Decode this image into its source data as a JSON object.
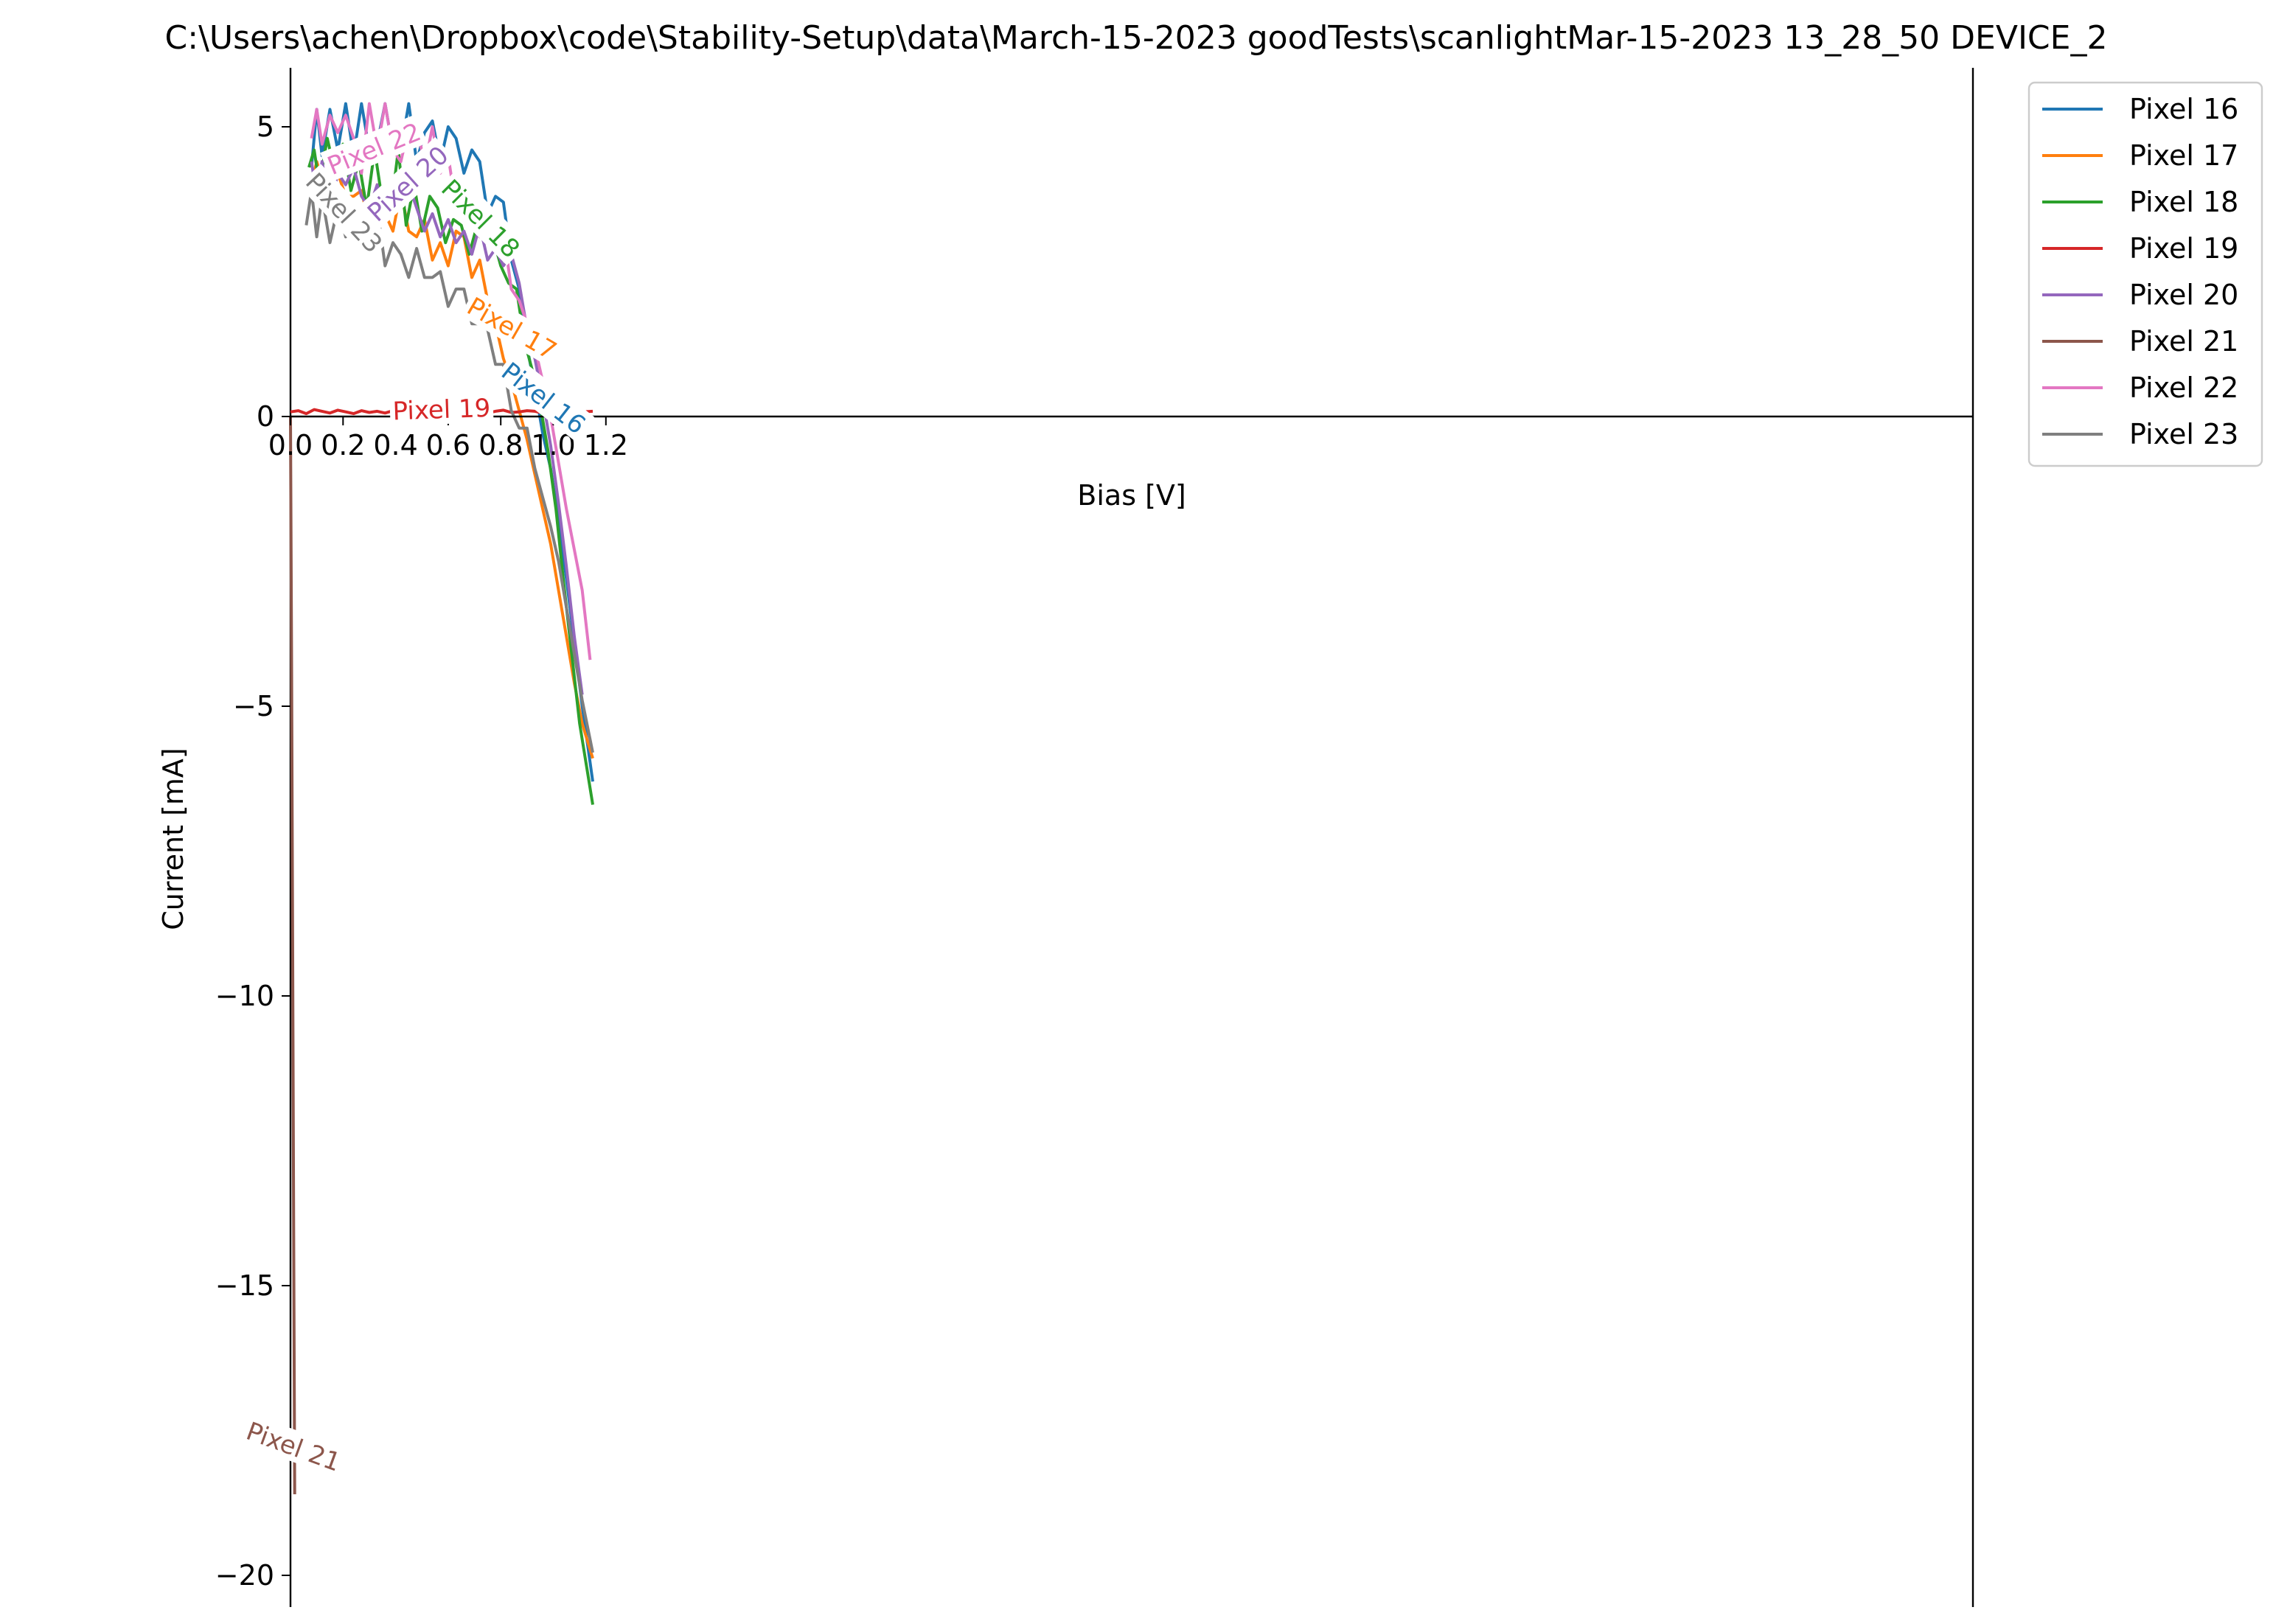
{
  "chart_data": {
    "type": "line",
    "title": "C:\\Users\\achen\\Dropbox\\code\\Stability-Setup\\data\\March-15-2023 goodTests\\scanlightMar-15-2023 13_28_50 DEVICE_2",
    "xlabel": "Bias [V]",
    "ylabel": "Current [mA]",
    "xlim": [
      0.0,
      1.28
    ],
    "ylim": [
      -20.55,
      6.0
    ],
    "xticks": [
      0.0,
      0.2,
      0.4,
      0.6,
      0.8,
      1.0,
      1.2
    ],
    "xtick_labels": [
      "0.0",
      "0.2",
      "0.4",
      "0.6",
      "0.8",
      "1.0",
      "1.2"
    ],
    "yticks": [
      5,
      0,
      -5,
      -10,
      -15,
      -20
    ],
    "ytick_labels": [
      "5",
      "0",
      "−5",
      "−10",
      "−15",
      "−20"
    ],
    "grid": false,
    "legend_position": "outside-top-right",
    "series": [
      {
        "name": "Pixel 16",
        "color": "#1f77b4",
        "x": [
          0.08,
          0.1,
          0.12,
          0.15,
          0.18,
          0.21,
          0.24,
          0.27,
          0.3,
          0.33,
          0.36,
          0.39,
          0.42,
          0.45,
          0.48,
          0.51,
          0.54,
          0.57,
          0.6,
          0.63,
          0.66,
          0.69,
          0.72,
          0.75,
          0.78,
          0.81,
          0.84,
          0.87,
          0.9,
          0.93,
          0.96,
          0.99,
          1.02,
          1.05,
          1.08,
          1.11,
          1.15
        ],
        "y": [
          4.3,
          5.3,
          4.5,
          5.3,
          4.6,
          5.4,
          4.5,
          5.4,
          4.6,
          4.7,
          5.4,
          4.6,
          4.6,
          5.4,
          4.4,
          4.9,
          5.1,
          4.4,
          5.0,
          4.8,
          4.2,
          4.6,
          4.4,
          3.5,
          3.8,
          3.7,
          2.7,
          2.2,
          1.2,
          0.5,
          -0.3,
          -0.9,
          -1.8,
          -2.8,
          -3.9,
          -5.0,
          -6.3
        ]
      },
      {
        "name": "Pixel 17",
        "color": "#ff7f0e",
        "x": [
          0.08,
          0.1,
          0.12,
          0.15,
          0.18,
          0.21,
          0.24,
          0.27,
          0.3,
          0.33,
          0.36,
          0.39,
          0.42,
          0.45,
          0.48,
          0.51,
          0.54,
          0.57,
          0.6,
          0.63,
          0.66,
          0.69,
          0.72,
          0.75,
          0.78,
          0.81,
          0.84,
          0.87,
          0.9,
          0.93,
          0.96,
          0.99,
          1.02,
          1.05,
          1.08,
          1.11,
          1.15
        ],
        "y": [
          4.0,
          4.4,
          4.1,
          3.8,
          4.2,
          3.8,
          3.8,
          3.9,
          3.3,
          4.0,
          3.5,
          3.2,
          3.9,
          3.2,
          3.1,
          3.4,
          2.7,
          3.0,
          2.6,
          3.2,
          3.1,
          2.4,
          2.7,
          2.0,
          1.6,
          1.0,
          0.6,
          0.1,
          -0.4,
          -1.0,
          -1.6,
          -2.2,
          -3.0,
          -3.8,
          -4.6,
          -5.3,
          -5.9
        ]
      },
      {
        "name": "Pixel 18",
        "color": "#2ca02c",
        "x": [
          0.07,
          0.09,
          0.11,
          0.14,
          0.17,
          0.2,
          0.23,
          0.26,
          0.29,
          0.32,
          0.35,
          0.38,
          0.41,
          0.44,
          0.47,
          0.5,
          0.53,
          0.56,
          0.59,
          0.62,
          0.65,
          0.68,
          0.71,
          0.74,
          0.77,
          0.8,
          0.83,
          0.86,
          0.89,
          0.92,
          0.95,
          0.98,
          1.01,
          1.04,
          1.07,
          1.1,
          1.15
        ],
        "y": [
          4.3,
          4.6,
          4.0,
          4.8,
          4.2,
          4.7,
          3.9,
          4.4,
          3.6,
          4.6,
          3.7,
          3.5,
          4.6,
          3.3,
          4.0,
          3.2,
          3.8,
          3.6,
          3.0,
          3.4,
          3.3,
          2.8,
          3.3,
          3.5,
          3.1,
          2.6,
          2.3,
          2.2,
          1.3,
          0.8,
          0.2,
          -0.6,
          -1.6,
          -2.9,
          -4.1,
          -5.3,
          -6.7
        ]
      },
      {
        "name": "Pixel 19",
        "color": "#d62728",
        "x": [
          0.0,
          0.03,
          0.06,
          0.09,
          0.12,
          0.15,
          0.18,
          0.21,
          0.24,
          0.27,
          0.3,
          0.33,
          0.36,
          0.39,
          0.42,
          0.45,
          0.48,
          0.51,
          0.54,
          0.57,
          0.6,
          0.63,
          0.66,
          0.69,
          0.72,
          0.75,
          0.78,
          0.81,
          0.84,
          0.87,
          0.9,
          0.93,
          0.96,
          0.99,
          1.02,
          1.05,
          1.08,
          1.11,
          1.15
        ],
        "y": [
          0.08,
          0.1,
          0.05,
          0.12,
          0.09,
          0.06,
          0.11,
          0.08,
          0.05,
          0.1,
          0.07,
          0.09,
          0.06,
          0.1,
          0.08,
          0.05,
          0.09,
          0.07,
          0.1,
          0.06,
          0.08,
          0.09,
          0.07,
          0.1,
          0.08,
          0.06,
          0.09,
          0.11,
          0.07,
          0.08,
          0.1,
          0.09,
          0.06,
          0.08,
          0.1,
          0.07,
          0.09,
          0.08,
          0.09
        ]
      },
      {
        "name": "Pixel 20",
        "color": "#9467bd",
        "x": [
          0.08,
          0.1,
          0.12,
          0.15,
          0.18,
          0.21,
          0.24,
          0.27,
          0.3,
          0.33,
          0.36,
          0.39,
          0.42,
          0.45,
          0.48,
          0.51,
          0.54,
          0.57,
          0.6,
          0.63,
          0.66,
          0.69,
          0.72,
          0.75,
          0.78,
          0.81,
          0.84,
          0.87,
          0.9,
          0.93,
          0.96,
          0.99,
          1.02,
          1.05,
          1.08,
          1.11
        ],
        "y": [
          4.4,
          3.8,
          4.4,
          3.6,
          4.2,
          4.0,
          4.3,
          3.8,
          3.6,
          4.0,
          3.5,
          3.8,
          3.7,
          4.0,
          3.6,
          3.2,
          3.5,
          3.1,
          3.4,
          3.0,
          3.2,
          2.8,
          3.3,
          2.7,
          2.9,
          2.6,
          2.8,
          2.3,
          1.5,
          1.0,
          0.3,
          -0.5,
          -1.5,
          -2.6,
          -3.8,
          -4.8
        ]
      },
      {
        "name": "Pixel 21",
        "color": "#8c564b",
        "x": [
          0.0,
          0.004,
          0.008,
          0.012,
          0.016
        ],
        "y": [
          0.0,
          -4.0,
          -9.0,
          -14.0,
          -18.6
        ]
      },
      {
        "name": "Pixel 22",
        "color": "#e377c2",
        "x": [
          0.08,
          0.1,
          0.12,
          0.15,
          0.18,
          0.21,
          0.24,
          0.27,
          0.3,
          0.33,
          0.36,
          0.39,
          0.42,
          0.45,
          0.48,
          0.51,
          0.54,
          0.57,
          0.6,
          0.63,
          0.66,
          0.69,
          0.72,
          0.75,
          0.78,
          0.81,
          0.84,
          0.87,
          0.9,
          0.93,
          0.96,
          0.99,
          1.02,
          1.05,
          1.08,
          1.11,
          1.14
        ],
        "y": [
          4.8,
          5.3,
          4.7,
          5.2,
          4.9,
          5.2,
          4.8,
          4.2,
          5.4,
          4.6,
          5.4,
          4.6,
          4.4,
          5.0,
          5.1,
          4.3,
          5.0,
          4.2,
          4.5,
          3.6,
          3.8,
          3.4,
          3.1,
          3.3,
          3.0,
          3.2,
          2.2,
          2.0,
          1.6,
          1.2,
          0.6,
          0.0,
          -0.8,
          -1.6,
          -2.3,
          -3.0,
          -4.2
        ]
      },
      {
        "name": "Pixel 23",
        "color": "#7f7f7f",
        "x": [
          0.06,
          0.08,
          0.1,
          0.12,
          0.15,
          0.18,
          0.21,
          0.24,
          0.27,
          0.3,
          0.33,
          0.36,
          0.39,
          0.42,
          0.45,
          0.48,
          0.51,
          0.54,
          0.57,
          0.6,
          0.63,
          0.66,
          0.69,
          0.72,
          0.75,
          0.78,
          0.81,
          0.84,
          0.87,
          0.9,
          0.93,
          0.96,
          0.99,
          1.02,
          1.05,
          1.08,
          1.11,
          1.15
        ],
        "y": [
          3.3,
          3.9,
          3.1,
          3.8,
          3.0,
          3.6,
          3.1,
          3.6,
          2.9,
          3.2,
          3.6,
          2.6,
          3.0,
          2.8,
          2.4,
          2.9,
          2.4,
          2.4,
          2.5,
          1.9,
          2.2,
          2.2,
          1.6,
          1.6,
          1.5,
          0.9,
          0.9,
          0.1,
          -0.2,
          -0.2,
          -0.9,
          -1.4,
          -1.9,
          -2.5,
          -3.3,
          -4.1,
          -4.9,
          -5.8
        ]
      }
    ],
    "annotations": [
      {
        "text": "Pixel 16",
        "series": "Pixel 16",
        "x": 0.96,
        "y": 0.3,
        "angle": 38
      },
      {
        "text": "Pixel 17",
        "series": "Pixel 17",
        "x": 0.84,
        "y": 1.5,
        "angle": 30
      },
      {
        "text": "Pixel 18",
        "series": "Pixel 18",
        "x": 0.72,
        "y": 3.4,
        "angle": 45
      },
      {
        "text": "Pixel 19",
        "series": "Pixel 19",
        "x": 0.575,
        "y": 0.1,
        "angle": -2
      },
      {
        "text": "Pixel 20",
        "series": "Pixel 20",
        "x": 0.45,
        "y": 4.0,
        "angle": -42
      },
      {
        "text": "Pixel 21",
        "series": "Pixel 21",
        "x": 0.01,
        "y": -17.8,
        "angle": 20
      },
      {
        "text": "Pixel 22",
        "series": "Pixel 22",
        "x": 0.32,
        "y": 4.6,
        "angle": -22
      },
      {
        "text": "Pixel 23",
        "series": "Pixel 23",
        "x": 0.2,
        "y": 3.5,
        "angle": 47
      }
    ]
  }
}
